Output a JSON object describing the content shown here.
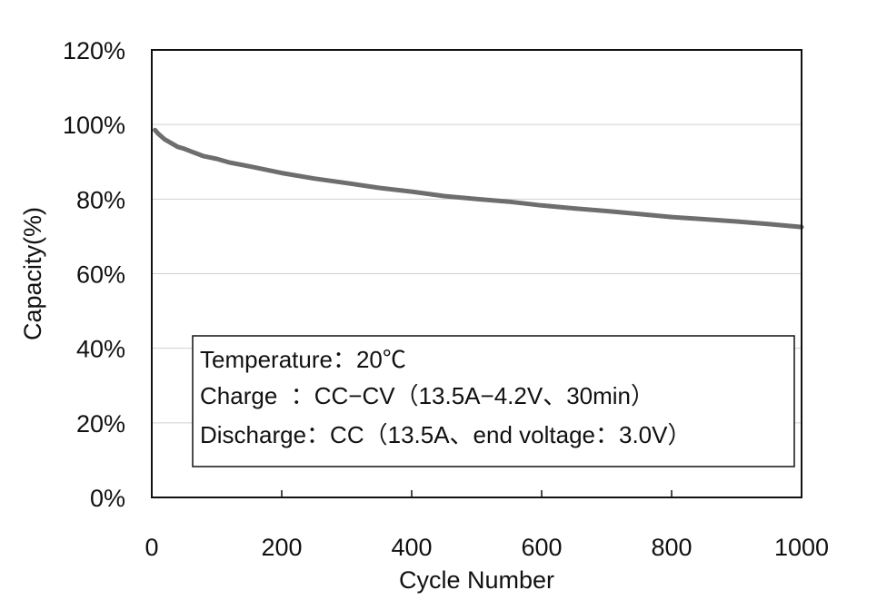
{
  "chart_data": {
    "type": "line",
    "xlabel": "Cycle Number",
    "ylabel": "Capacity(%)",
    "xlim": [
      0,
      1000
    ],
    "ylim": [
      0,
      120
    ],
    "x_ticks": [
      0,
      200,
      400,
      600,
      800,
      1000
    ],
    "y_ticks": [
      0,
      20,
      40,
      60,
      80,
      100,
      120
    ],
    "x_tick_labels": [
      "0",
      "200",
      "400",
      "600",
      "800",
      "1000"
    ],
    "y_tick_labels": [
      "0%",
      "20%",
      "40%",
      "60%",
      "80%",
      "100%",
      "120%"
    ],
    "grid": "horizontal",
    "series_color": "#6e6e6e",
    "series": [
      {
        "x": [
          5,
          10,
          20,
          30,
          40,
          50,
          60,
          80,
          100,
          120,
          150,
          200,
          250,
          300,
          350,
          400,
          450,
          500,
          550,
          600,
          650,
          700,
          750,
          800,
          850,
          900,
          950,
          1000
        ],
        "values": [
          98.5,
          97.5,
          96.0,
          95.0,
          94.0,
          93.5,
          92.8,
          91.5,
          90.8,
          89.8,
          88.8,
          87.0,
          85.5,
          84.3,
          83.0,
          82.0,
          80.8,
          80.0,
          79.3,
          78.3,
          77.5,
          76.8,
          76.0,
          75.2,
          74.6,
          74.0,
          73.3,
          72.5
        ]
      }
    ],
    "annotations": [
      "Temperature：20℃",
      "Charge  ：CC−CV（13.5A−4.2V、30min）",
      "Discharge：CC（13.5A、end voltage：3.0V）"
    ]
  }
}
